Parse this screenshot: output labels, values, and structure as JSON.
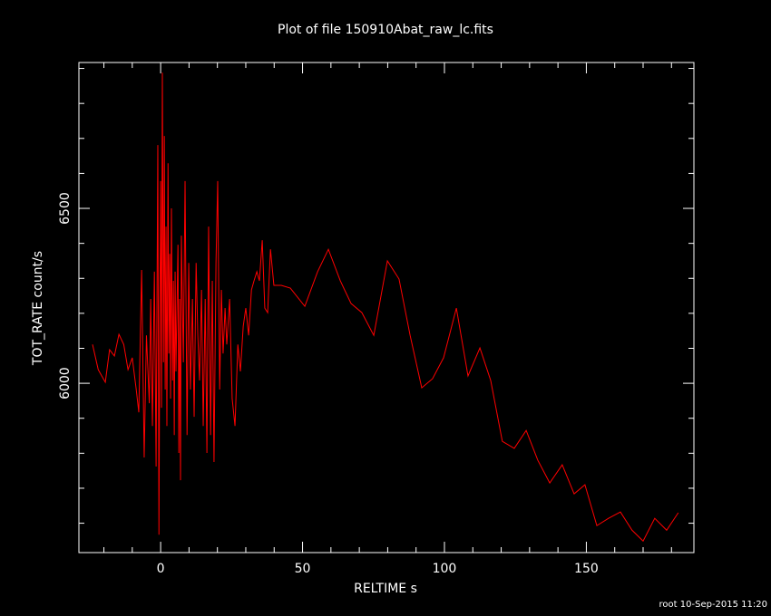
{
  "chart_data": {
    "type": "line",
    "title": "Plot of file 150910Abat_raw_lc.fits",
    "xlabel": "RELTIME  s",
    "ylabel": "TOT_RATE  count/s",
    "footer": "root 10-Sep-2015 11:20",
    "color": "#ff0000",
    "xlim": [
      -28.8,
      187.9
    ],
    "ylim": [
      5516,
      6917
    ],
    "xticks": [
      0,
      50,
      100,
      150
    ],
    "yticks": [
      6000,
      6500
    ],
    "x_minor_ticks": [
      -20,
      -10,
      10,
      20,
      30,
      40,
      60,
      70,
      80,
      90,
      110,
      120,
      130,
      140,
      160,
      170,
      180
    ],
    "y_minor_ticks": [
      5600,
      5700,
      5800,
      5900,
      6100,
      6200,
      6300,
      6400,
      6600,
      6700,
      6800,
      6900
    ],
    "x": [
      -24,
      -22,
      -19.5,
      -18,
      -16.3,
      -14.7,
      -13,
      -11.5,
      -10,
      -8.6,
      -7.7,
      -6.7,
      -5.8,
      -5,
      -4,
      -3.5,
      -2.9,
      -2.2,
      -1.6,
      -1,
      -0.6,
      -0.3,
      0,
      0.3,
      0.6,
      1.0,
      1.3,
      1.6,
      1.9,
      2.2,
      2.6,
      2.9,
      3.2,
      3.5,
      3.8,
      4.2,
      4.5,
      4.8,
      5.1,
      5.4,
      6.1,
      6.4,
      6.7,
      7.0,
      7.3,
      8.0,
      8.6,
      9.3,
      9.9,
      10.5,
      11.2,
      11.8,
      12.5,
      13.1,
      13.7,
      14.4,
      15.0,
      15.7,
      16.3,
      16.9,
      17.6,
      18.2,
      18.8,
      19.5,
      20.1,
      20.8,
      21.4,
      22.0,
      22.7,
      23.3,
      24.3,
      25.2,
      26.2,
      27.2,
      28.1,
      29.1,
      30.0,
      31.0,
      32.0,
      32.9,
      33.9,
      34.8,
      35.8,
      36.7,
      37.7,
      38.7,
      39.9,
      42.5,
      45.7,
      50.8,
      55.3,
      59.1,
      63.3,
      67.1,
      70.9,
      75.1,
      79.9,
      84.0,
      87.9,
      92.0,
      95.8,
      99.7,
      104.2,
      108.3,
      112.5,
      116.3,
      120.4,
      124.6,
      128.8,
      132.9,
      137.1,
      141.5,
      145.7,
      149.5,
      153.7,
      157.8,
      162.0,
      166.1,
      170.0,
      174.1,
      178.3,
      182.4
    ],
    "values": [
      6111,
      6039,
      6003,
      6096,
      6078,
      6140,
      6111,
      6039,
      6073,
      5982,
      5917,
      6324,
      5788,
      6137,
      5943,
      6241,
      5878,
      6319,
      5762,
      6681,
      5567,
      6189,
      6578,
      5930,
      6888,
      6060,
      6707,
      5982,
      6448,
      5878,
      6629,
      6085,
      6370,
      5956,
      6500,
      6008,
      6293,
      5852,
      6319,
      6034,
      6396,
      5801,
      6241,
      5723,
      6422,
      6060,
      6578,
      5852,
      6344,
      5982,
      6241,
      5904,
      6344,
      6137,
      6008,
      6267,
      5878,
      6241,
      5801,
      6448,
      5852,
      6293,
      5775,
      6344,
      6578,
      5982,
      6267,
      6085,
      6215,
      6111,
      6241,
      5956,
      5878,
      6111,
      6034,
      6163,
      6215,
      6137,
      6267,
      6293,
      6319,
      6293,
      6409,
      6215,
      6202,
      6383,
      6280,
      6280,
      6272,
      6220,
      6319,
      6383,
      6293,
      6228,
      6202,
      6137,
      6350,
      6298,
      6137,
      5987,
      6013,
      6073,
      6215,
      6021,
      6101,
      6008,
      5834,
      5814,
      5865,
      5780,
      5715,
      5767,
      5684,
      5710,
      5593,
      5614,
      5632,
      5580,
      5549,
      5614,
      5580,
      5630
    ]
  }
}
